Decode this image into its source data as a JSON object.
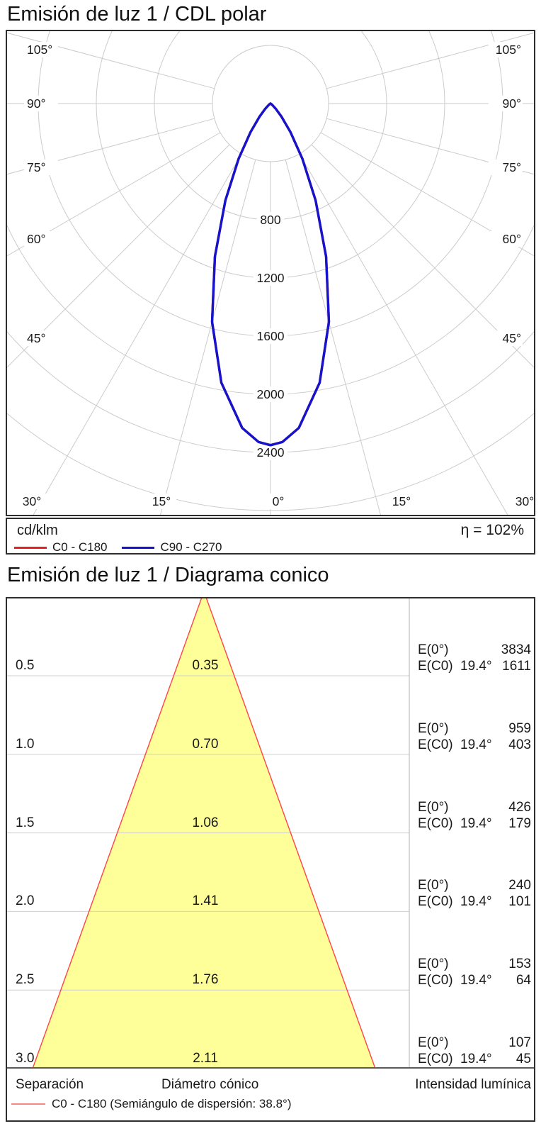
{
  "page": {
    "background": "#ffffff"
  },
  "chart_data": [
    {
      "type": "line",
      "variant": "polar-intensity-distribution",
      "title": "Emisión de luz 1 / CDL polar",
      "unit": "cd/klm",
      "efficiency": "η = 102%",
      "radial_axis": {
        "tick_step": 400,
        "max": 2800,
        "labeled_ticks": [
          "800",
          "1200",
          "1600",
          "2000",
          "2400"
        ]
      },
      "angular_axis": {
        "step_deg": 15,
        "side_labels": [
          "105°",
          "90°",
          "75°",
          "60°",
          "45°"
        ],
        "bottom_labels": [
          "30°",
          "15°",
          "0°",
          "15°",
          "30°"
        ]
      },
      "peak_cd_klm": 2350,
      "series": [
        {
          "name": "C0 - C180",
          "color": "#e32222",
          "points_deg_cdklm": [
            [
              0,
              2350
            ],
            [
              2,
              2330
            ],
            [
              5,
              2240
            ],
            [
              10,
              1950
            ],
            [
              15,
              1555
            ],
            [
              20,
              1120
            ],
            [
              25,
              735
            ],
            [
              30,
              440
            ],
            [
              35,
              240
            ],
            [
              40,
              118
            ],
            [
              45,
              52
            ],
            [
              50,
              20
            ],
            [
              55,
              8
            ],
            [
              60,
              3
            ],
            [
              65,
              1
            ],
            [
              75,
              0
            ],
            [
              90,
              0
            ]
          ]
        },
        {
          "name": "C90 - C270",
          "color": "#1414cc",
          "points_deg_cdklm": [
            [
              0,
              2350
            ],
            [
              2,
              2330
            ],
            [
              5,
              2240
            ],
            [
              10,
              1950
            ],
            [
              15,
              1555
            ],
            [
              20,
              1120
            ],
            [
              25,
              735
            ],
            [
              30,
              440
            ],
            [
              35,
              240
            ],
            [
              40,
              118
            ],
            [
              45,
              52
            ],
            [
              50,
              20
            ],
            [
              55,
              8
            ],
            [
              60,
              3
            ],
            [
              65,
              1
            ],
            [
              75,
              0
            ],
            [
              90,
              0
            ]
          ]
        }
      ]
    },
    {
      "type": "table",
      "variant": "cone-diagram",
      "title": "Emisión de luz 1 / Diagrama conico",
      "cone_color": "#ffff99",
      "edge_color": "#ff4444",
      "beam": {
        "e0_label": "E(0°)",
        "ec0_label": "E(C0)",
        "half_angle": "19.4°"
      },
      "rows": [
        {
          "separation_m": "0.5",
          "diameter_m": "0.35",
          "e0_lux": "3834",
          "ec0_lux": "1611"
        },
        {
          "separation_m": "1.0",
          "diameter_m": "0.70",
          "e0_lux": "959",
          "ec0_lux": "403"
        },
        {
          "separation_m": "1.5",
          "diameter_m": "1.06",
          "e0_lux": "426",
          "ec0_lux": "179"
        },
        {
          "separation_m": "2.0",
          "diameter_m": "1.41",
          "e0_lux": "240",
          "ec0_lux": "101"
        },
        {
          "separation_m": "2.5",
          "diameter_m": "1.76",
          "e0_lux": "153",
          "ec0_lux": "64"
        },
        {
          "separation_m": "3.0",
          "diameter_m": "2.11",
          "e0_lux": "107",
          "ec0_lux": "45"
        }
      ],
      "footer": {
        "separation": "Separación",
        "diameter": "Diámetro cónico",
        "intensity": "Intensidad lumínica"
      },
      "legend": "C0 - C180 (Semiángulo de dispersión: 38.8°)"
    }
  ]
}
